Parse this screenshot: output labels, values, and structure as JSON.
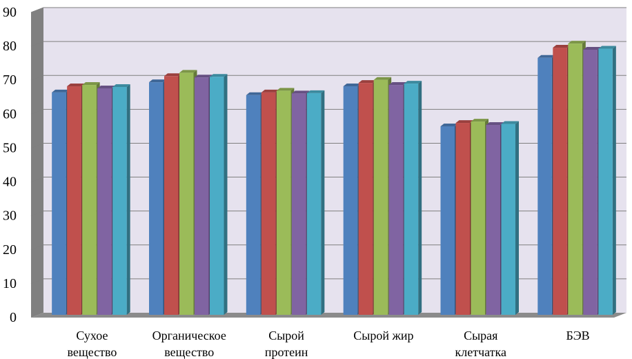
{
  "chart_data": {
    "type": "bar",
    "title": "",
    "xlabel": "",
    "ylabel": "",
    "ylim": [
      0,
      90
    ],
    "yticks": [
      0,
      10,
      20,
      30,
      40,
      50,
      60,
      70,
      80,
      90
    ],
    "grid": true,
    "legend": "none",
    "categories": [
      [
        "Сухое",
        "вещество"
      ],
      [
        "Органическое",
        "вещество"
      ],
      [
        "Сырой",
        "протеин"
      ],
      [
        "Сырой жир"
      ],
      [
        "Сырая",
        "клетчатка"
      ],
      [
        "БЭВ"
      ]
    ],
    "series": [
      {
        "color": "#4F81BD",
        "values": [
          66.0,
          69.0,
          65.2,
          67.8,
          56.0,
          76.2
        ]
      },
      {
        "color": "#C0504D",
        "values": [
          67.8,
          70.8,
          66.0,
          68.8,
          57.0,
          79.2
        ]
      },
      {
        "color": "#9BBB59",
        "values": [
          68.2,
          71.8,
          66.5,
          69.7,
          57.4,
          80.4
        ]
      },
      {
        "color": "#8064A2",
        "values": [
          67.2,
          70.4,
          65.7,
          68.2,
          56.4,
          78.6
        ]
      },
      {
        "color": "#4BACC6",
        "values": [
          67.6,
          70.6,
          65.8,
          68.6,
          56.7,
          78.9
        ]
      }
    ],
    "colors": {
      "wall": "#E6E2EE",
      "wall_side": "#808080",
      "floor": "#8B8B8B",
      "grid": "#7F7F7F"
    }
  }
}
